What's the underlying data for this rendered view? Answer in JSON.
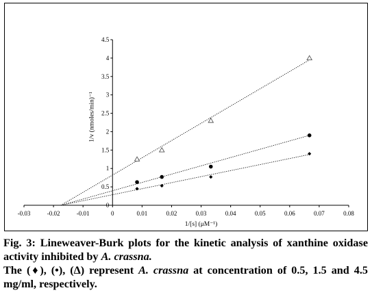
{
  "chart_data": {
    "type": "scatter",
    "xlabel": "1/[s] (μM⁻¹)",
    "ylabel": "1/v (nmoles/min)⁻¹",
    "xlim": [
      -0.03,
      0.08
    ],
    "ylim": [
      0,
      4.5
    ],
    "x_ticks": [
      "-0.03",
      "-0.02",
      "-0.01",
      "0",
      "0.01",
      "0.02",
      "0.03",
      "0.04",
      "0.05",
      "0.06",
      "0.07",
      "0.08"
    ],
    "y_ticks": [
      "0",
      "0.5",
      "1",
      "1.5",
      "2",
      "2.5",
      "3",
      "3.5",
      "4",
      "4.5"
    ],
    "grid": false,
    "legend": "none",
    "series": [
      {
        "marker": "diamond",
        "x": [
          0.0083,
          0.0167,
          0.0333,
          0.0667
        ],
        "y": [
          0.45,
          0.53,
          0.77,
          1.4
        ],
        "trendline": {
          "x": [
            -0.0175,
            0.0667
          ],
          "y": [
            0,
            1.38
          ]
        }
      },
      {
        "marker": "circle",
        "x": [
          0.0083,
          0.0167,
          0.0333,
          0.0667
        ],
        "y": [
          0.63,
          0.77,
          1.05,
          1.9
        ],
        "trendline": {
          "x": [
            -0.0175,
            0.0667
          ],
          "y": [
            0,
            1.9
          ]
        }
      },
      {
        "marker": "triangle",
        "x": [
          0.0083,
          0.0167,
          0.0333,
          0.0667
        ],
        "y": [
          1.25,
          1.5,
          2.3,
          4.0
        ],
        "trendline": {
          "x": [
            -0.0175,
            0.0667
          ],
          "y": [
            0,
            3.95
          ]
        }
      }
    ]
  },
  "caption": {
    "fig_label": "Fig. 3:",
    "line1_text": "Lineweaver-Burk plots for the kinetic analysis of xanthine oxidase activity inhibited by",
    "line1_species": "A. crassna.",
    "line2_pre": "The (♦), (•), (Δ) represent",
    "line2_species": "A. crassna",
    "line2_post": "at concentration of 0.5, 1.5 and 4.5 mg/ml, respectively."
  }
}
